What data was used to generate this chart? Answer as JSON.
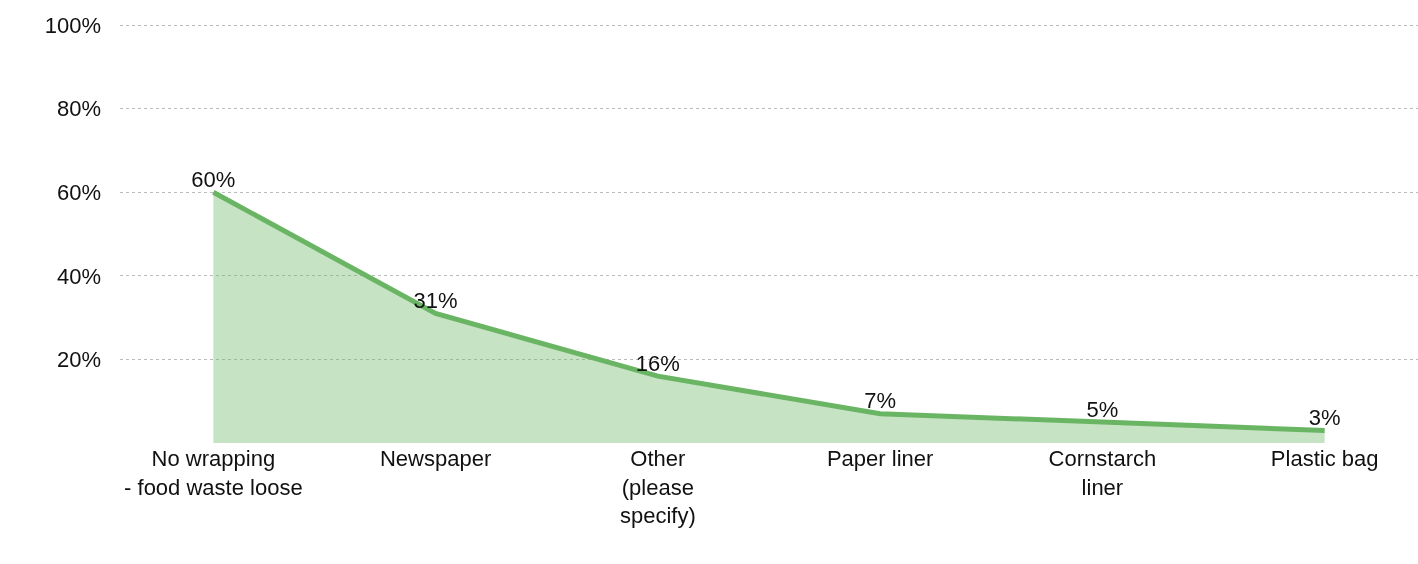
{
  "chart_data": {
    "type": "area",
    "categories": [
      "No wrapping\n- food waste loose",
      "Newspaper",
      "Other\n(please\nspecify)",
      "Paper liner",
      "Cornstarch\nliner",
      "Plastic bag"
    ],
    "values": [
      60,
      31,
      16,
      7,
      5,
      3
    ],
    "color": "#6ab564",
    "ylim": [
      0,
      106
    ],
    "yticks": [
      {
        "value": 20,
        "label": "20%"
      },
      {
        "value": 40,
        "label": "40%"
      },
      {
        "value": 60,
        "label": "60%"
      },
      {
        "value": 80,
        "label": "80%"
      },
      {
        "value": 100,
        "label": "100%"
      }
    ],
    "value_labels": [
      "60%",
      "31%",
      "16%",
      "7%",
      "5%",
      "3%"
    ],
    "grid": "y",
    "legend": false,
    "marker": "none",
    "line_style": "solid"
  }
}
